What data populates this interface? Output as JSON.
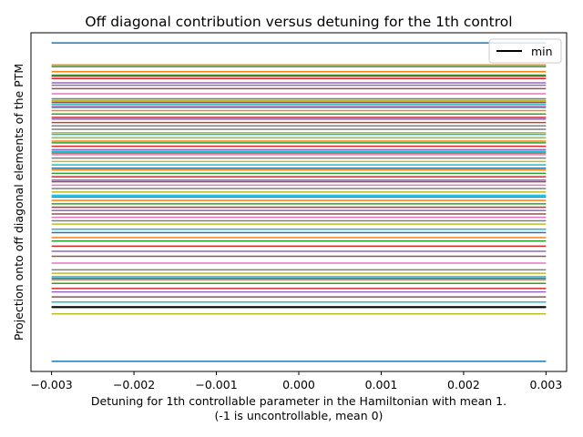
{
  "chart_data": {
    "type": "line",
    "title": "Off diagonal contribution versus detuning for the 1th control",
    "xlabel_line1": "Detuning for 1th controllable parameter in the Hamiltonian with mean 1.",
    "xlabel_line2": "(-1 is uncontrollable, mean 0)",
    "ylabel": "Projection onto off diagonal elements of the PTM",
    "x": [
      -0.003,
      0.003
    ],
    "xlim": [
      -0.00325,
      0.00325
    ],
    "ylim": [
      0,
      1
    ],
    "x_ticks": [
      -0.003,
      -0.002,
      -0.001,
      0.0,
      0.001,
      0.002,
      0.003
    ],
    "x_tick_labels": [
      "−0.003",
      "−0.002",
      "−0.001",
      "0.000",
      "0.001",
      "0.002",
      "0.003"
    ],
    "y_ticks_shown": false,
    "grid": false,
    "legend": {
      "placement": "top-right",
      "entries": [
        {
          "label": "min",
          "color": "#000000"
        }
      ]
    },
    "palette": [
      "#1f77b4",
      "#ff7f0e",
      "#2ca02c",
      "#d62728",
      "#9467bd",
      "#8c564b",
      "#e377c2",
      "#7f7f7f",
      "#bcbd22",
      "#17becf"
    ],
    "min_series": {
      "name": "min",
      "value": 0.19,
      "color": "#000000"
    },
    "series_values": [
      0.97,
      0.885,
      0.875,
      0.865,
      0.845,
      0.835,
      0.82,
      0.805,
      0.8,
      0.79,
      0.78,
      0.77,
      0.76,
      0.75,
      0.745,
      0.735,
      0.725,
      0.715,
      0.705,
      0.7,
      0.69,
      0.68,
      0.675,
      0.665,
      0.655,
      0.645,
      0.64,
      0.63,
      0.62,
      0.61,
      0.6,
      0.595,
      0.585,
      0.575,
      0.565,
      0.56,
      0.55,
      0.54,
      0.53,
      0.52,
      0.515,
      0.505,
      0.495,
      0.485,
      0.475,
      0.465,
      0.455,
      0.445,
      0.435,
      0.42,
      0.41,
      0.395,
      0.385,
      0.37,
      0.355,
      0.34,
      0.32,
      0.3,
      0.29,
      0.28,
      0.275,
      0.27,
      0.26,
      0.245,
      0.235,
      0.22,
      0.205,
      0.19,
      0.17,
      0.205,
      0.03,
      0.905,
      0.9,
      0.872,
      0.852,
      0.795,
      0.785,
      0.725,
      0.69,
      0.65
    ]
  }
}
